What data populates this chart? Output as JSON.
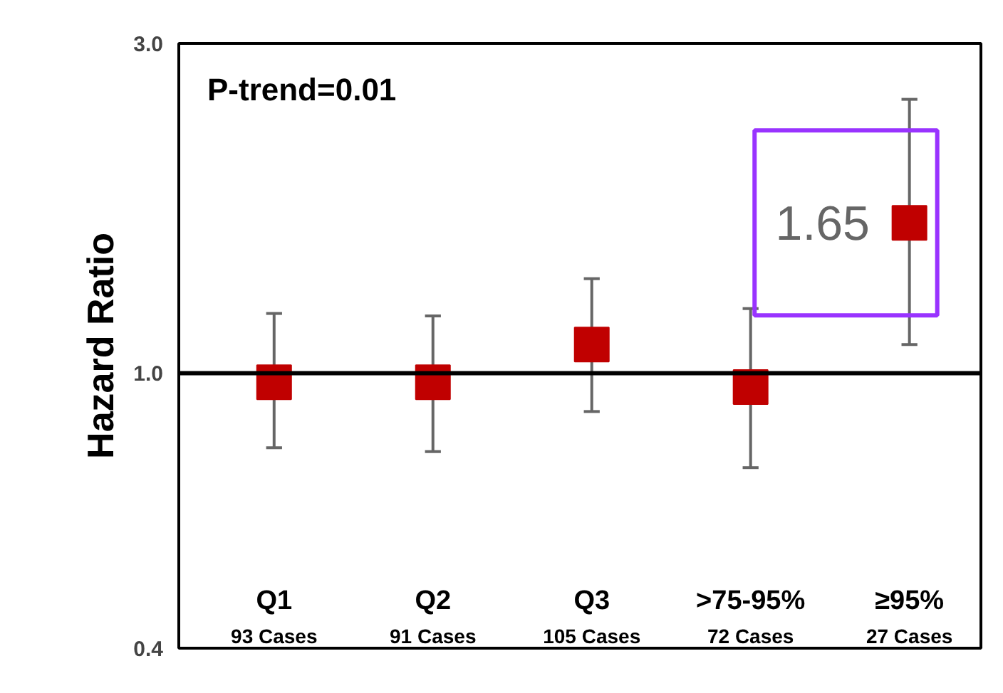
{
  "chart_data": {
    "type": "scatter",
    "ylabel": "Hazard Ratio",
    "categories": [
      "Q1\n93 Cases",
      "Q2\n91 Cases",
      "Q3\n105 Cases",
      ">75-95%\n72 Cases",
      "≥95%\n27 Cases"
    ],
    "values": [
      0.97,
      0.97,
      1.1,
      0.955,
      1.65
    ],
    "errors": [
      [
        0.78,
        1.22
      ],
      [
        0.77,
        1.21
      ],
      [
        0.88,
        1.37
      ],
      [
        0.73,
        1.24
      ],
      [
        1.1,
        2.49
      ]
    ],
    "value_labels": [
      null,
      null,
      null,
      null,
      "1.65"
    ],
    "color": "#c00000",
    "marker": "square",
    "log": true,
    "grid": false,
    "ylim": [
      0.4,
      3.0
    ],
    "yticks": [
      {
        "value": 0.4,
        "label": "0.4"
      },
      {
        "value": 1,
        "label": "1.0"
      },
      {
        "value": 3,
        "label": "3.0"
      }
    ],
    "ref_lines": [
      {
        "axis": "y",
        "value": 1,
        "color": "#000000"
      }
    ],
    "annotations": [
      "P-trend=0.01"
    ]
  }
}
